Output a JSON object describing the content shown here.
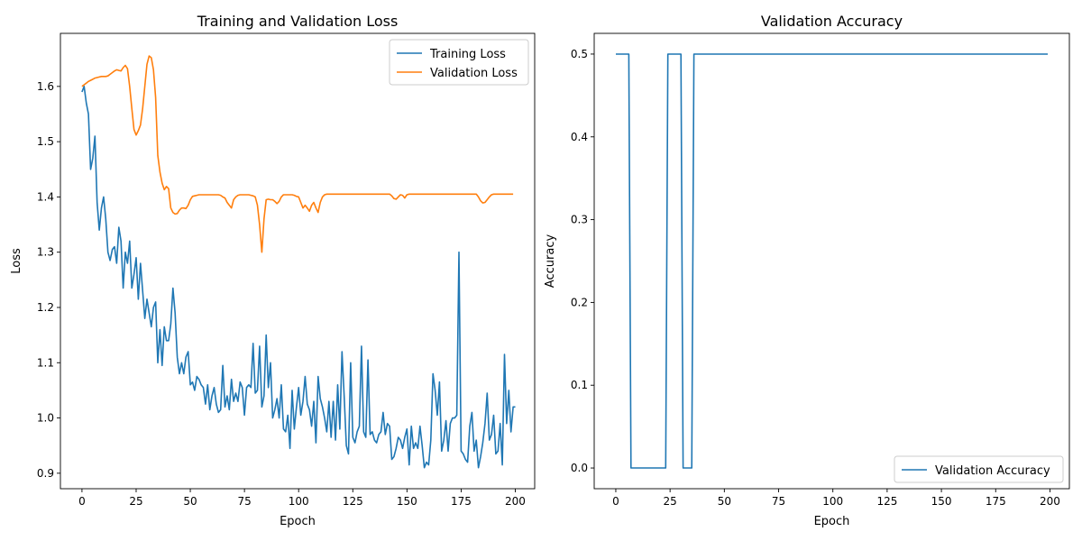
{
  "chart_data": [
    {
      "type": "line",
      "title": "Training and Validation Loss",
      "xlabel": "Epoch",
      "ylabel": "Loss",
      "xlim": [
        -9.95,
        208.95
      ],
      "ylim": [
        0.872,
        1.696
      ],
      "xticks": [
        0,
        25,
        50,
        75,
        100,
        125,
        150,
        175,
        200
      ],
      "yticks": [
        0.9,
        1.0,
        1.1,
        1.2,
        1.3,
        1.4,
        1.5,
        1.6
      ],
      "legend": "upper-right",
      "grid": false,
      "series": [
        {
          "name": "Training Loss",
          "color": "#1f77b4",
          "values": [
            1.59,
            1.6,
            1.57,
            1.55,
            1.45,
            1.47,
            1.51,
            1.39,
            1.34,
            1.38,
            1.4,
            1.36,
            1.3,
            1.285,
            1.305,
            1.31,
            1.28,
            1.345,
            1.32,
            1.235,
            1.3,
            1.28,
            1.32,
            1.235,
            1.26,
            1.29,
            1.215,
            1.28,
            1.23,
            1.18,
            1.215,
            1.19,
            1.165,
            1.2,
            1.21,
            1.1,
            1.16,
            1.095,
            1.165,
            1.14,
            1.14,
            1.17,
            1.235,
            1.19,
            1.11,
            1.08,
            1.1,
            1.08,
            1.11,
            1.12,
            1.06,
            1.065,
            1.05,
            1.075,
            1.07,
            1.06,
            1.055,
            1.025,
            1.06,
            1.015,
            1.04,
            1.055,
            1.025,
            1.01,
            1.015,
            1.095,
            1.02,
            1.04,
            1.015,
            1.07,
            1.03,
            1.045,
            1.03,
            1.065,
            1.055,
            1.005,
            1.055,
            1.06,
            1.055,
            1.135,
            1.045,
            1.05,
            1.13,
            1.02,
            1.04,
            1.15,
            1.055,
            1.1,
            1.0,
            1.015,
            1.035,
            1.0,
            1.06,
            0.98,
            0.975,
            1.005,
            0.945,
            1.05,
            0.98,
            1.02,
            1.055,
            1.005,
            1.03,
            1.075,
            1.025,
            1.015,
            0.985,
            1.03,
            0.955,
            1.075,
            1.035,
            1.02,
            1.0,
            0.975,
            1.03,
            0.965,
            1.03,
            0.96,
            1.06,
            0.98,
            1.12,
            1.04,
            0.95,
            0.935,
            1.1,
            0.965,
            0.955,
            0.975,
            0.985,
            1.13,
            0.975,
            0.965,
            1.105,
            0.97,
            0.975,
            0.96,
            0.955,
            0.97,
            0.975,
            1.01,
            0.97,
            0.99,
            0.985,
            0.925,
            0.93,
            0.945,
            0.965,
            0.96,
            0.945,
            0.965,
            0.98,
            0.915,
            0.985,
            0.945,
            0.955,
            0.945,
            0.985,
            0.95,
            0.91,
            0.92,
            0.915,
            0.96,
            1.08,
            1.05,
            1.005,
            1.065,
            0.94,
            0.96,
            0.995,
            0.94,
            0.99,
            1.0,
            1.0,
            1.005,
            1.3,
            0.94,
            0.935,
            0.925,
            0.92,
            0.985,
            1.01,
            0.94,
            0.96,
            0.91,
            0.93,
            0.955,
            0.99,
            1.045,
            0.96,
            0.97,
            1.005,
            0.935,
            0.94,
            0.99,
            0.915,
            1.115,
            0.99,
            1.05,
            0.975,
            1.02,
            1.02
          ]
        },
        {
          "name": "Validation Loss",
          "color": "#ff7f0e",
          "values": [
            1.6,
            1.603,
            1.606,
            1.609,
            1.611,
            1.613,
            1.615,
            1.616,
            1.617,
            1.618,
            1.618,
            1.618,
            1.619,
            1.622,
            1.625,
            1.628,
            1.63,
            1.629,
            1.628,
            1.634,
            1.638,
            1.632,
            1.6,
            1.56,
            1.522,
            1.512,
            1.52,
            1.53,
            1.56,
            1.6,
            1.64,
            1.655,
            1.652,
            1.63,
            1.58,
            1.475,
            1.445,
            1.425,
            1.413,
            1.419,
            1.415,
            1.38,
            1.372,
            1.369,
            1.37,
            1.376,
            1.38,
            1.38,
            1.379,
            1.385,
            1.395,
            1.401,
            1.402,
            1.403,
            1.404,
            1.404,
            1.404,
            1.404,
            1.404,
            1.404,
            1.404,
            1.404,
            1.404,
            1.404,
            1.403,
            1.4,
            1.398,
            1.39,
            1.385,
            1.38,
            1.395,
            1.4,
            1.403,
            1.404,
            1.404,
            1.404,
            1.404,
            1.404,
            1.403,
            1.402,
            1.4,
            1.385,
            1.35,
            1.3,
            1.36,
            1.395,
            1.396,
            1.395,
            1.395,
            1.392,
            1.388,
            1.392,
            1.4,
            1.404,
            1.404,
            1.404,
            1.404,
            1.404,
            1.403,
            1.401,
            1.4,
            1.39,
            1.38,
            1.385,
            1.38,
            1.374,
            1.385,
            1.39,
            1.38,
            1.372,
            1.39,
            1.4,
            1.404,
            1.405,
            1.405,
            1.405,
            1.405,
            1.405,
            1.405,
            1.405,
            1.405,
            1.405,
            1.405,
            1.405,
            1.405,
            1.405,
            1.405,
            1.405,
            1.405,
            1.405,
            1.405,
            1.405,
            1.405,
            1.405,
            1.405,
            1.405,
            1.405,
            1.405,
            1.405,
            1.405,
            1.405,
            1.405,
            1.405,
            1.402,
            1.397,
            1.396,
            1.4,
            1.404,
            1.403,
            1.398,
            1.404,
            1.405,
            1.405,
            1.405,
            1.405,
            1.405,
            1.405,
            1.405,
            1.405,
            1.405,
            1.405,
            1.405,
            1.405,
            1.405,
            1.405,
            1.405,
            1.405,
            1.405,
            1.405,
            1.405,
            1.405,
            1.405,
            1.405,
            1.405,
            1.405,
            1.405,
            1.405,
            1.405,
            1.405,
            1.405,
            1.405,
            1.405,
            1.405,
            1.4,
            1.393,
            1.389,
            1.39,
            1.395,
            1.4,
            1.404,
            1.405,
            1.405,
            1.405,
            1.405,
            1.405,
            1.405,
            1.405,
            1.405,
            1.405,
            1.405
          ]
        }
      ]
    },
    {
      "type": "line",
      "title": "Validation Accuracy",
      "xlabel": "Epoch",
      "ylabel": "Accuracy",
      "xlim": [
        -9.95,
        208.95
      ],
      "ylim": [
        -0.025,
        0.525
      ],
      "xticks": [
        0,
        25,
        50,
        75,
        100,
        125,
        150,
        175,
        200
      ],
      "yticks": [
        0.0,
        0.1,
        0.2,
        0.3,
        0.4,
        0.5
      ],
      "legend": "lower-right",
      "grid": false,
      "series": [
        {
          "name": "Validation Accuracy",
          "color": "#1f77b4",
          "segments": [
            {
              "from": 0,
              "to": 6,
              "value": 0.5
            },
            {
              "from": 7,
              "to": 23,
              "value": 0.0
            },
            {
              "from": 24,
              "to": 30,
              "value": 0.5
            },
            {
              "from": 31,
              "to": 35,
              "value": 0.0
            },
            {
              "from": 36,
              "to": 199,
              "value": 0.5
            }
          ]
        }
      ]
    }
  ]
}
